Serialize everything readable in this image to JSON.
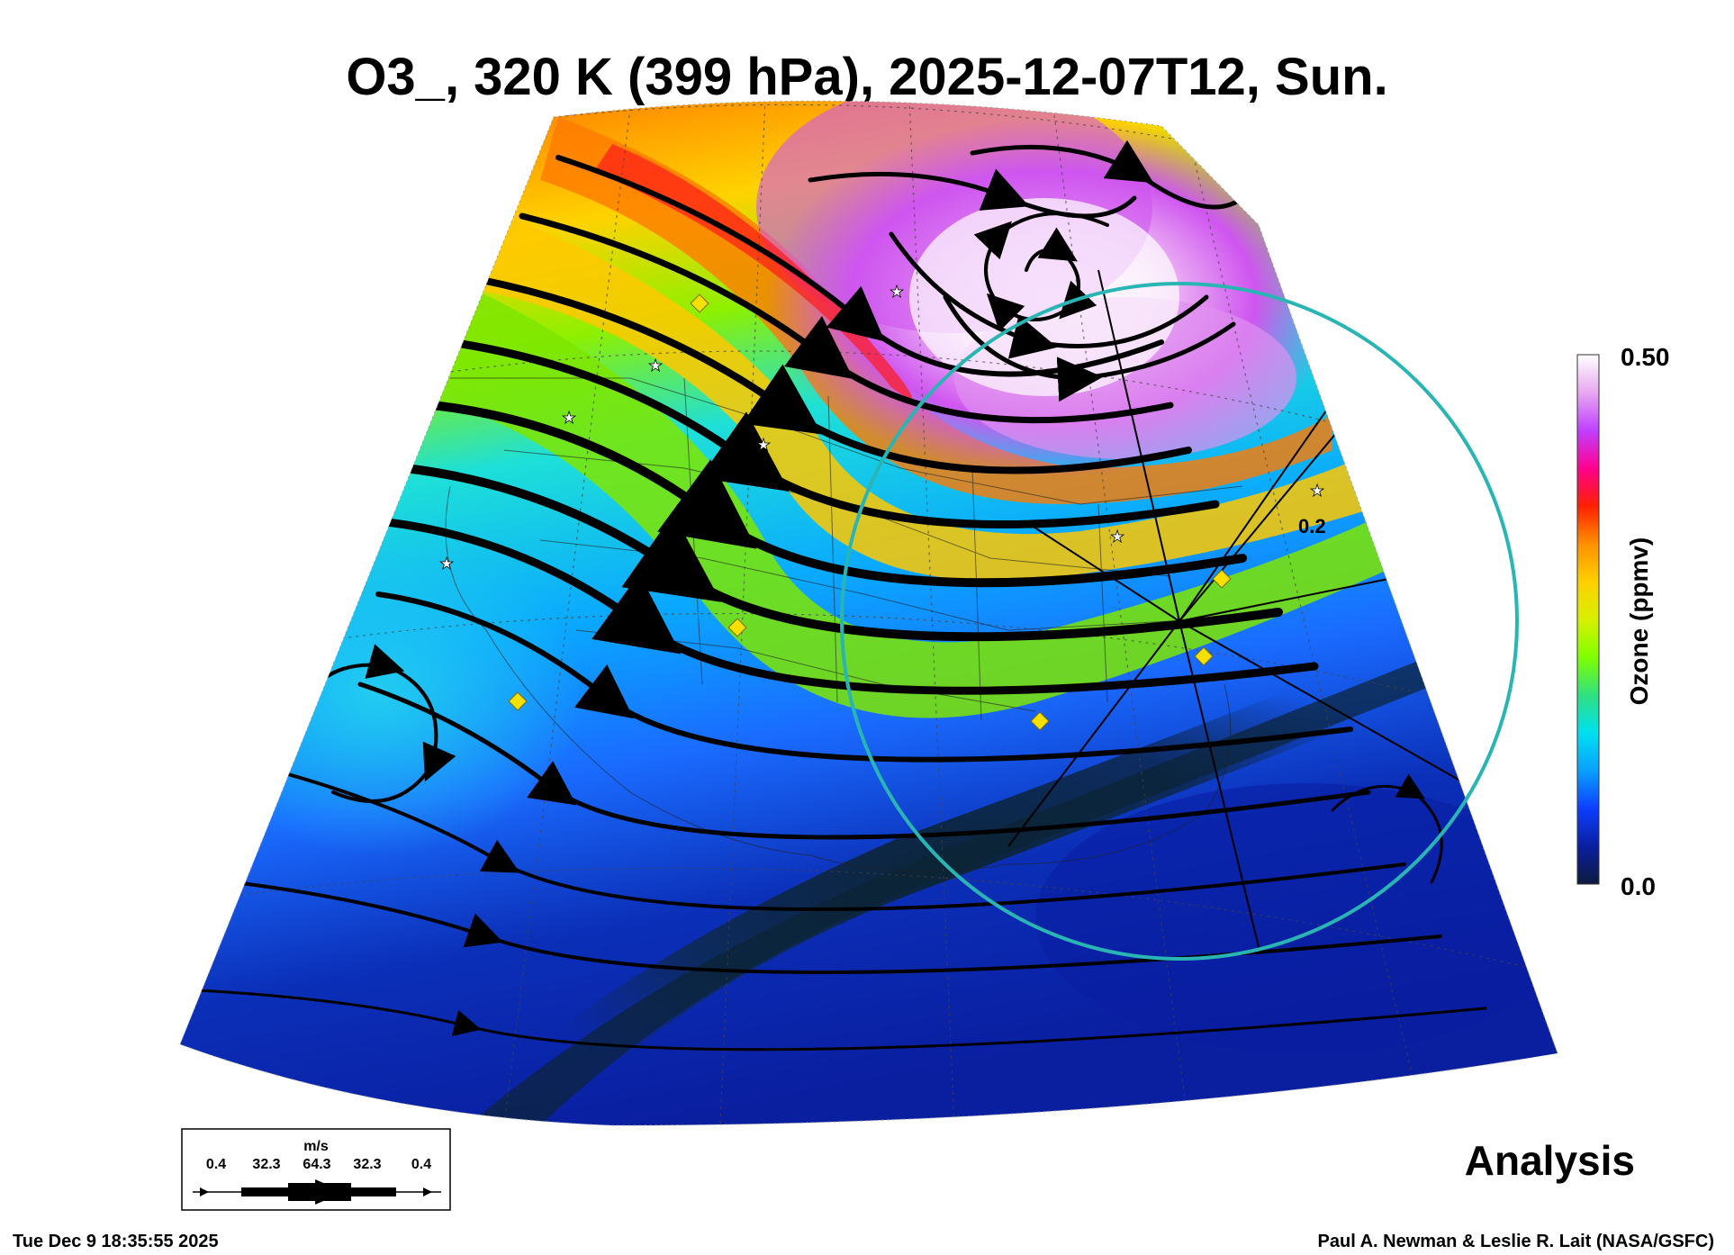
{
  "title": "O3_, 320 K (399 hPa), 2025-12-07T12, Sun.",
  "colorbar": {
    "label": "Ozone (ppmv)",
    "max_label": "0.50",
    "min_label": "0.0",
    "range": [
      0.0,
      0.5
    ],
    "stops": [
      "#0d1b3e",
      "#0a1ea0",
      "#0d3fff",
      "#0aa0ff",
      "#00e0f0",
      "#30e080",
      "#80ff00",
      "#d8f000",
      "#ffd000",
      "#ff9000",
      "#ff2000",
      "#ff0090",
      "#c040ff",
      "#e8a8f0",
      "#ffffff"
    ]
  },
  "contour_label": "0.2",
  "wind_legend": {
    "unit": "m/s",
    "values": [
      "0.4",
      "32.3",
      "64.3",
      "32.3",
      "0.4"
    ]
  },
  "analysis_label": "Analysis",
  "timestamp": "Tue Dec  9 18:35:55 2025",
  "credit": "Paul A. Newman & Leslie R. Lait (NASA/GSFC)",
  "colors": {
    "circle": "#2ab5b5",
    "marker_diamond": "#f5e000",
    "marker_star": "#ffffff",
    "streamline": "#000000"
  }
}
